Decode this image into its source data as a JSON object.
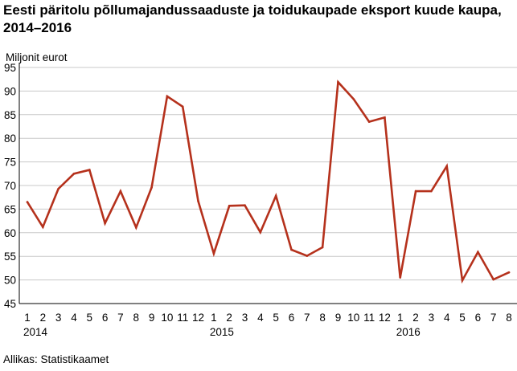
{
  "chart_data": {
    "type": "line",
    "title": "Eesti päritolu põllumajandussaaduste ja toidukaupade eksport kuude kaupa, 2014–2016",
    "ylabel": "Miljonit eurot",
    "xlabel": "",
    "source": "Allikas: Statistikaamet",
    "ylim": [
      45,
      95
    ],
    "yticks": [
      45,
      50,
      55,
      60,
      65,
      70,
      75,
      80,
      85,
      90,
      95
    ],
    "grid": true,
    "categories": [
      "1",
      "2",
      "3",
      "4",
      "5",
      "6",
      "7",
      "8",
      "9",
      "10",
      "11",
      "12",
      "1",
      "2",
      "3",
      "4",
      "5",
      "6",
      "7",
      "8",
      "9",
      "10",
      "11",
      "12",
      "1",
      "2",
      "3",
      "4",
      "5",
      "6",
      "7",
      "8"
    ],
    "year_labels": [
      {
        "label": "2014",
        "start_index": 0
      },
      {
        "label": "2015",
        "start_index": 12
      },
      {
        "label": "2016",
        "start_index": 24
      }
    ],
    "series": [
      {
        "color": "#b5311c",
        "values": [
          66.5,
          61.2,
          69.3,
          72.5,
          73.3,
          62.0,
          68.8,
          61.1,
          69.6,
          88.9,
          86.7,
          66.7,
          55.6,
          65.7,
          65.8,
          60.1,
          67.8,
          56.4,
          55.1,
          56.9,
          91.9,
          88.3,
          83.5,
          84.4,
          50.5,
          68.8,
          68.8,
          74.1,
          49.9,
          55.9,
          50.1,
          51.6
        ]
      }
    ]
  }
}
